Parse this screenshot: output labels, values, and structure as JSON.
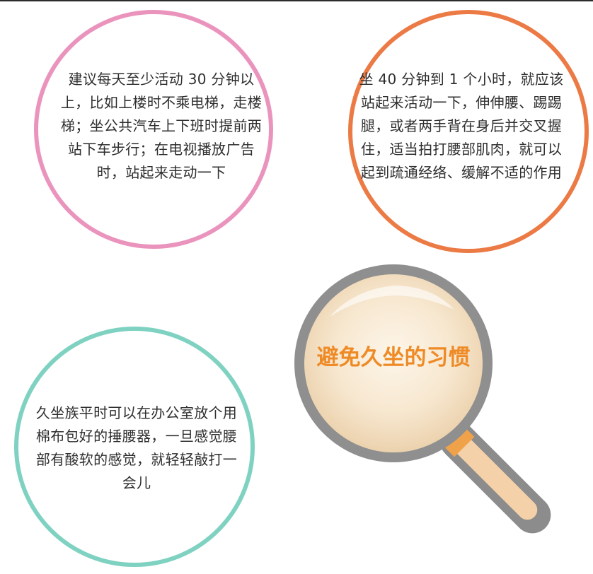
{
  "tips": {
    "pink": "建议每天至少活动 30 分钟以上，比如上楼时不乘电梯，走楼梯；坐公共汽车上下班时提前两站下车步行；在电视播放广告时，站起来走动一下",
    "orange": "坐 40 分钟到 1 个小时，就应该站起来活动一下，伸伸腰、踢踢腿，或者两手背在身后并交叉握住，适当拍打腰部肌肉，就可以起到疏通经络、缓解不适的作用",
    "teal": "久坐族平时可以在办公室放个用棉布包好的捶腰器，一旦感觉腰部有酸软的感觉，就轻轻敲打一会儿"
  },
  "magnifier": {
    "title": "避免久坐的习惯"
  },
  "colors": {
    "pink": "#ea94bd",
    "orange": "#ec7a45",
    "teal": "#7fd2c1",
    "title": "#ee8b27",
    "lens_fill": "#f6e3c9",
    "frame": "#8c8c8c"
  }
}
